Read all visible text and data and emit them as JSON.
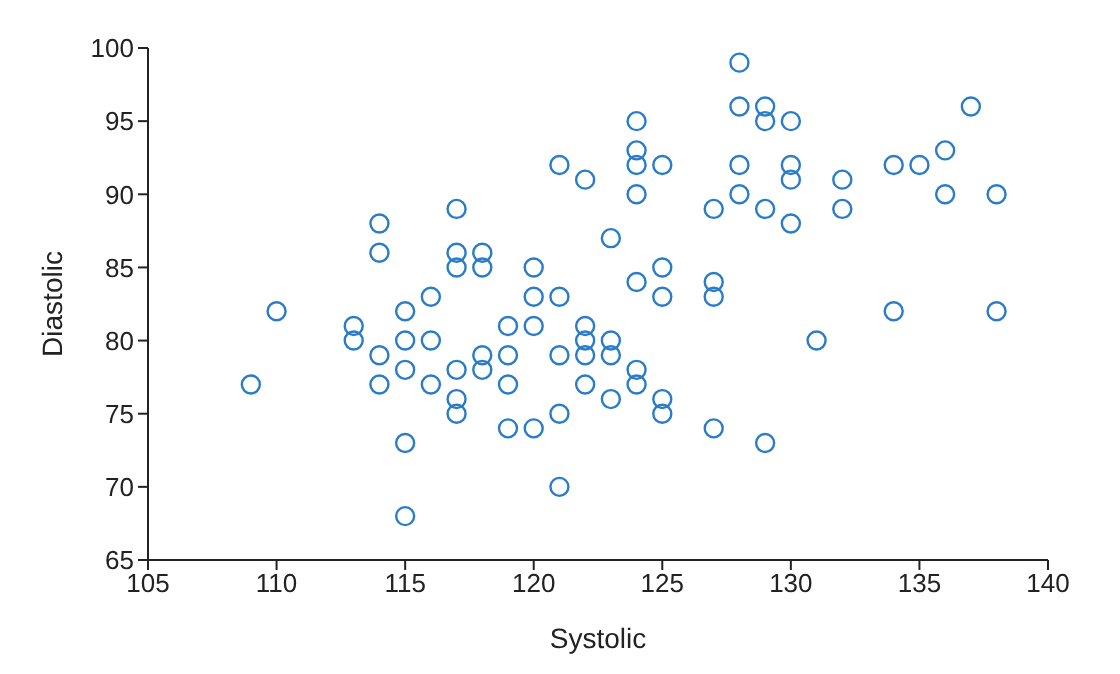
{
  "chart_data": {
    "type": "scatter",
    "xlabel": "Systolic",
    "ylabel": "Diastolic",
    "xlim": [
      105,
      140
    ],
    "xticks": [
      105,
      110,
      115,
      120,
      125,
      130,
      135,
      140
    ],
    "ylim": [
      65,
      100
    ],
    "yticks": [
      65,
      70,
      75,
      80,
      85,
      90,
      95,
      100
    ],
    "marker": "circle",
    "grid": false,
    "series": [
      {
        "color": "#2a7cc9",
        "x": [
          109,
          110,
          113,
          113,
          114,
          114,
          114,
          114,
          115,
          115,
          115,
          115,
          115,
          116,
          116,
          116,
          117,
          117,
          117,
          117,
          117,
          117,
          118,
          118,
          118,
          118,
          119,
          119,
          119,
          119,
          120,
          120,
          120,
          120,
          121,
          121,
          121,
          121,
          121,
          122,
          122,
          122,
          122,
          122,
          123,
          123,
          123,
          123,
          124,
          124,
          124,
          124,
          124,
          124,
          124,
          125,
          125,
          125,
          125,
          125,
          127,
          127,
          127,
          127,
          128,
          128,
          128,
          128,
          129,
          129,
          129,
          129,
          130,
          130,
          130,
          130,
          131,
          132,
          132,
          134,
          134,
          135,
          136,
          136,
          137,
          138,
          138
        ],
        "values": [
          77,
          82,
          81,
          80,
          88,
          86,
          79,
          77,
          82,
          80,
          78,
          73,
          68,
          83,
          80,
          77,
          89,
          86,
          85,
          78,
          76,
          75,
          86,
          85,
          79,
          78,
          81,
          79,
          77,
          74,
          85,
          83,
          81,
          74,
          92,
          83,
          79,
          75,
          70,
          91,
          81,
          80,
          79,
          77,
          87,
          80,
          79,
          76,
          95,
          93,
          92,
          90,
          84,
          78,
          77,
          92,
          85,
          83,
          76,
          75,
          89,
          84,
          83,
          74,
          99,
          96,
          92,
          90,
          96,
          95,
          89,
          73,
          95,
          92,
          91,
          88,
          80,
          91,
          89,
          92,
          82,
          92,
          93,
          90,
          96,
          90,
          82
        ]
      }
    ]
  }
}
